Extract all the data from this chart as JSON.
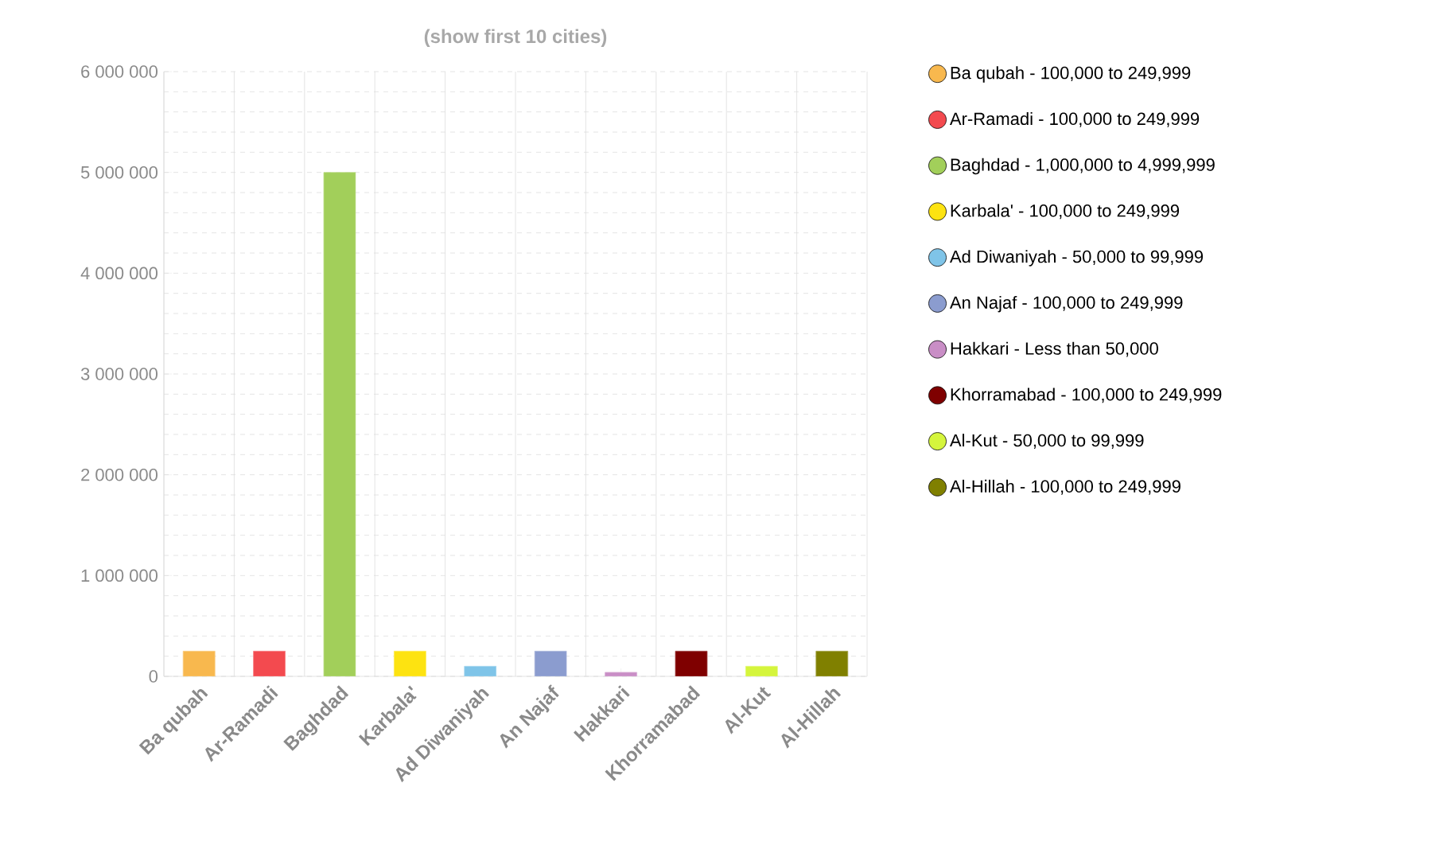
{
  "chart_data": {
    "type": "bar",
    "title": "(show first 10 cities)",
    "categories": [
      "Ba qubah",
      "Ar-Ramadi",
      "Baghdad",
      "Karbala'",
      "Ad Diwaniyah",
      "An Najaf",
      "Hakkari",
      "Khorramabad",
      "Al-Kut",
      "Al-Hillah"
    ],
    "series": [
      {
        "name": "Ba qubah - 100,000 to 249,999",
        "color": "#f8b84e",
        "values": [
          250000,
          null,
          null,
          null,
          null,
          null,
          null,
          null,
          null,
          null
        ]
      },
      {
        "name": "Ar-Ramadi - 100,000 to 249,999",
        "color": "#f34a4f",
        "values": [
          null,
          250000,
          null,
          null,
          null,
          null,
          null,
          null,
          null,
          null
        ]
      },
      {
        "name": "Baghdad - 1,000,000 to 4,999,999",
        "color": "#a2cf5a",
        "values": [
          null,
          null,
          5000000,
          null,
          null,
          null,
          null,
          null,
          null,
          null
        ]
      },
      {
        "name": "Karbala' - 100,000 to 249,999",
        "color": "#fde311",
        "values": [
          null,
          null,
          null,
          250000,
          null,
          null,
          null,
          null,
          null,
          null
        ]
      },
      {
        "name": "Ad Diwaniyah - 50,000 to 99,999",
        "color": "#7fc4e8",
        "values": [
          null,
          null,
          null,
          null,
          100000,
          null,
          null,
          null,
          null,
          null
        ]
      },
      {
        "name": "An Najaf - 100,000 to 249,999",
        "color": "#8b9ccf",
        "values": [
          null,
          null,
          null,
          null,
          null,
          250000,
          null,
          null,
          null,
          null
        ]
      },
      {
        "name": "Hakkari - Less than 50,000",
        "color": "#c98ec6",
        "values": [
          null,
          null,
          null,
          null,
          null,
          null,
          40000,
          null,
          null,
          null
        ]
      },
      {
        "name": "Khorramabad - 100,000 to 249,999",
        "color": "#7f0000",
        "values": [
          null,
          null,
          null,
          null,
          null,
          null,
          null,
          250000,
          null,
          null
        ]
      },
      {
        "name": "Al-Kut - 50,000 to 99,999",
        "color": "#d5f53c",
        "values": [
          null,
          null,
          null,
          null,
          null,
          null,
          null,
          null,
          100000,
          null
        ]
      },
      {
        "name": "Al-Hillah - 100,000 to 249,999",
        "color": "#808000",
        "values": [
          null,
          null,
          null,
          null,
          null,
          null,
          null,
          null,
          null,
          250000
        ]
      }
    ],
    "ylim": [
      0,
      6000000
    ],
    "yticks": [
      {
        "value": 0,
        "label": "0"
      },
      {
        "value": 1000000,
        "label": "1 000 000"
      },
      {
        "value": 2000000,
        "label": "2 000 000"
      },
      {
        "value": 3000000,
        "label": "3 000 000"
      },
      {
        "value": 4000000,
        "label": "4 000 000"
      },
      {
        "value": 5000000,
        "label": "5 000 000"
      },
      {
        "value": 6000000,
        "label": "6 000 000"
      }
    ],
    "grid": true,
    "legend": "right"
  }
}
